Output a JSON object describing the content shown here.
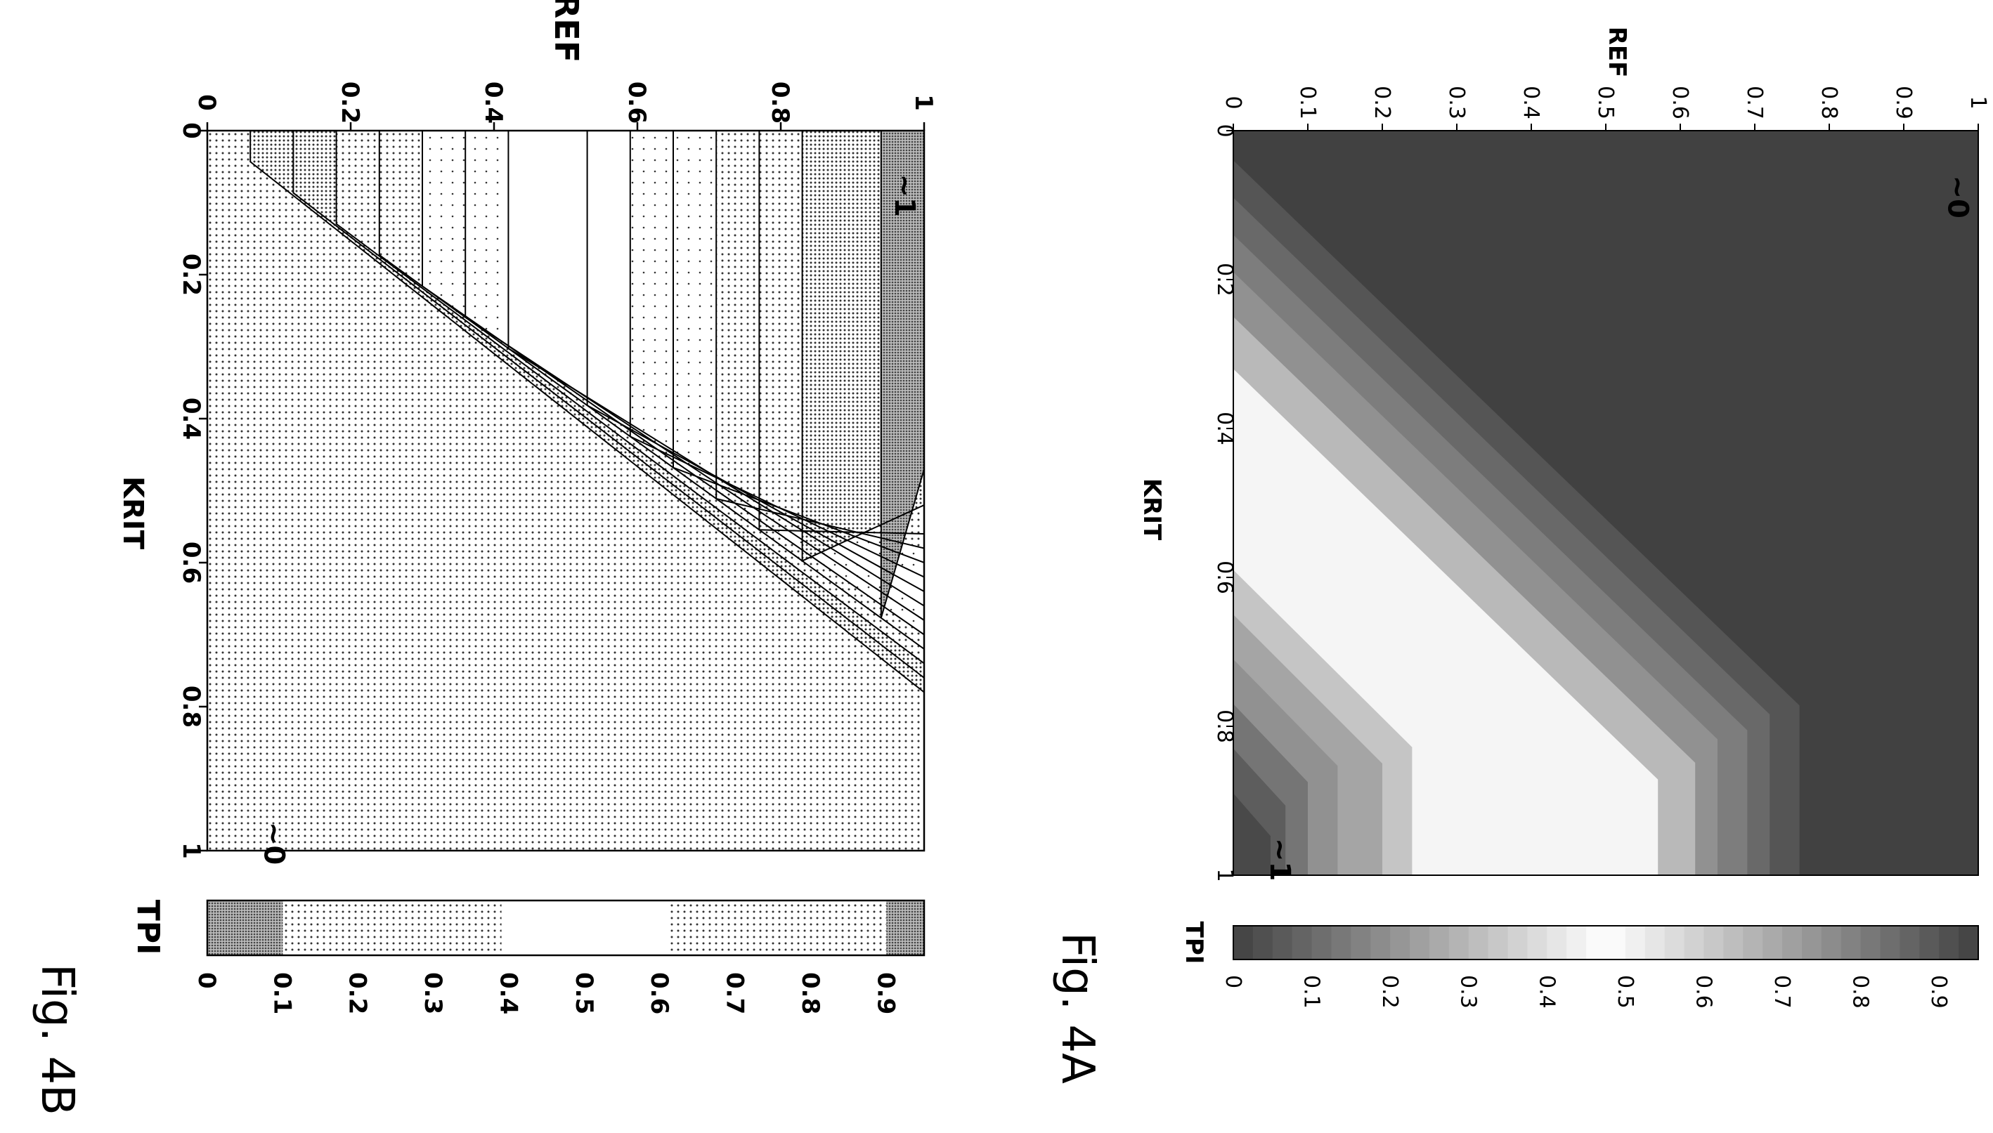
{
  "figures": {
    "fig_a": {
      "label": "Fig. 4A"
    },
    "fig_b": {
      "label": "Fig. 4B"
    }
  },
  "chart_data": [
    {
      "type": "heatmap",
      "style": "grayscale filled contour (~0 dark, mid light/white, ~1 dark)",
      "title": "",
      "xlabel": "KRIT",
      "ylabel": "REF",
      "colorbar_label": "TPI",
      "xlim": [
        0,
        1
      ],
      "ylim": [
        0,
        1
      ],
      "colorbar_range": [
        0,
        0.95
      ],
      "x_ticks": [
        "0",
        "0.2",
        "0.4",
        "0.6",
        "0.8",
        "1"
      ],
      "y_ticks": [
        "0",
        "0.1",
        "0.2",
        "0.3",
        "0.4",
        "0.5",
        "0.6",
        "0.7",
        "0.8",
        "0.9",
        "1"
      ],
      "colorbar_ticks": [
        "0",
        "0.1",
        "0.2",
        "0.3",
        "0.4",
        "0.5",
        "0.6",
        "0.7",
        "0.8",
        "0.9"
      ],
      "levels": [
        0.05,
        0.1,
        0.15,
        0.2,
        0.25,
        0.3,
        0.35,
        0.6,
        0.65,
        0.7,
        0.75,
        0.8,
        0.85,
        0.9
      ],
      "annotations": [
        {
          "text": "~0",
          "krit": 0.06,
          "ref": 0.96
        },
        {
          "text": "~1",
          "krit": 0.95,
          "ref": 0.05
        }
      ]
    },
    {
      "type": "heatmap",
      "style": "stippled contour with black contour lines",
      "title": "",
      "xlabel": "KRIT",
      "ylabel": "REF",
      "colorbar_label": "TPI",
      "xlim": [
        0,
        1
      ],
      "ylim": [
        0,
        1
      ],
      "colorbar_range": [
        0,
        0.95
      ],
      "x_ticks": [
        "0",
        "0.2",
        "0.4",
        "0.6",
        "0.8",
        "1"
      ],
      "y_ticks": [
        "0",
        "0.2",
        "0.4",
        "0.6",
        "0.8",
        "1"
      ],
      "colorbar_ticks": [
        "0",
        "0.1",
        "0.2",
        "0.3",
        "0.4",
        "0.5",
        "0.6",
        "0.7",
        "0.8",
        "0.9"
      ],
      "levels": [
        0.05,
        0.1,
        0.15,
        0.2,
        0.25,
        0.3,
        0.35,
        0.6,
        0.65,
        0.7,
        0.75,
        0.8,
        0.85,
        0.9
      ],
      "annotations": [
        {
          "text": "~1",
          "krit": 0.06,
          "ref": 0.96
        },
        {
          "text": "~0",
          "krit": 0.96,
          "ref": 0.08
        }
      ]
    }
  ]
}
